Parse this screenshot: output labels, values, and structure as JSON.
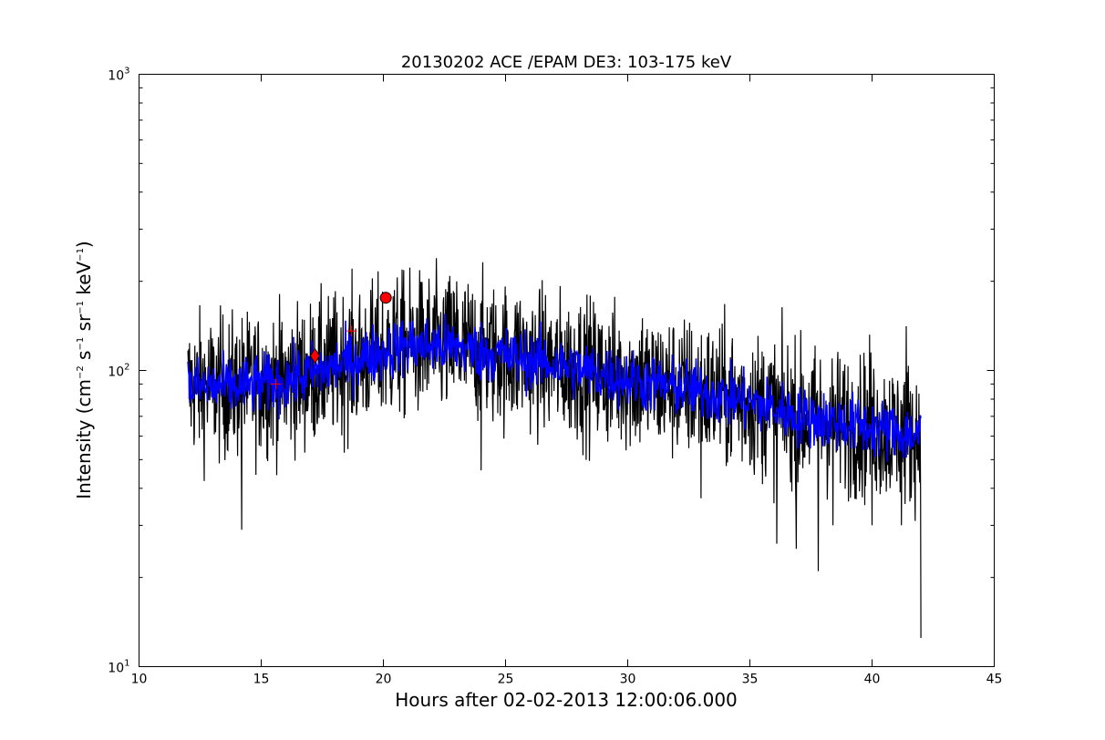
{
  "chart_data": {
    "type": "line",
    "title": "20130202 ACE /EPAM DE3: 103-175 keV",
    "xlabel": "Hours after 02-02-2013 12:00:06.000",
    "ylabel": {
      "prefix": "Intensity (cm",
      "exp1": "−2",
      "part2": " s",
      "exp2": "−1",
      "part3": " sr",
      "exp3": "−1",
      "part4": " keV",
      "exp4": "−1",
      "suffix": ")"
    },
    "xlim": [
      10,
      45
    ],
    "ylim": [
      10,
      1000
    ],
    "yscale": "log",
    "xticks": [
      10,
      15,
      20,
      25,
      30,
      35,
      40,
      45
    ],
    "xtick_labels": [
      "10",
      "15",
      "20",
      "25",
      "30",
      "35",
      "40",
      "45"
    ],
    "yticks": [
      10,
      100,
      1000
    ],
    "ytick_labels": [
      {
        "base": "10",
        "exp": "1"
      },
      {
        "base": "10",
        "exp": "2"
      },
      {
        "base": "10",
        "exp": "3"
      }
    ],
    "series": [
      {
        "style": "raw",
        "color": "#000000",
        "x_range": [
          12.0,
          42.0
        ],
        "trend": [
          [
            12.0,
            88
          ],
          [
            14.0,
            88
          ],
          [
            16.0,
            92
          ],
          [
            17.5,
            100
          ],
          [
            19.0,
            110
          ],
          [
            21.0,
            122
          ],
          [
            23.0,
            120
          ],
          [
            25.0,
            112
          ],
          [
            27.0,
            105
          ],
          [
            29.0,
            97
          ],
          [
            31.0,
            90
          ],
          [
            33.0,
            85
          ],
          [
            35.0,
            78
          ],
          [
            37.0,
            70
          ],
          [
            39.0,
            66
          ],
          [
            41.0,
            62
          ],
          [
            42.0,
            60
          ]
        ],
        "noise_decades": 0.12,
        "spikes_low": [
          [
            14.2,
            29
          ],
          [
            37.8,
            21
          ],
          [
            42.0,
            12.5
          ],
          [
            36.1,
            26
          ],
          [
            36.9,
            25
          ],
          [
            24.0,
            46
          ],
          [
            33.0,
            37
          ],
          [
            38.4,
            30
          ],
          [
            40.0,
            30
          ],
          [
            41.2,
            30
          ]
        ],
        "spikes_high": [
          [
            23.0,
            200
          ],
          [
            21.4,
            162
          ],
          [
            20.4,
            178
          ],
          [
            24.6,
            166
          ],
          [
            25.6,
            172
          ],
          [
            39.9,
            132
          ],
          [
            41.4,
            141
          ],
          [
            30.6,
            150
          ],
          [
            28.0,
            156
          ]
        ]
      },
      {
        "style": "smoothed",
        "color": "#0000ff",
        "x_range": [
          12.0,
          42.0
        ],
        "trend": [
          [
            12.0,
            88
          ],
          [
            14.0,
            88
          ],
          [
            16.0,
            92
          ],
          [
            17.5,
            100
          ],
          [
            19.0,
            110
          ],
          [
            21.0,
            122
          ],
          [
            23.0,
            120
          ],
          [
            25.0,
            112
          ],
          [
            27.0,
            105
          ],
          [
            29.0,
            97
          ],
          [
            31.0,
            90
          ],
          [
            33.0,
            85
          ],
          [
            35.0,
            78
          ],
          [
            37.0,
            70
          ],
          [
            39.0,
            66
          ],
          [
            41.0,
            62
          ],
          [
            42.0,
            60
          ]
        ],
        "noise_decades": 0.05
      }
    ],
    "markers": [
      {
        "shape": "circle",
        "x": 20.1,
        "y": 176,
        "color": "#ff0000"
      },
      {
        "shape": "diamond",
        "x": 17.2,
        "y": 112,
        "color": "#ff0000"
      },
      {
        "shape": "plus",
        "x": 15.6,
        "y": 90,
        "color": "#ff0000"
      },
      {
        "shape": "plus",
        "x": 18.7,
        "y": 136,
        "color": "#ff0000"
      }
    ],
    "grid": false,
    "legend": "none"
  }
}
